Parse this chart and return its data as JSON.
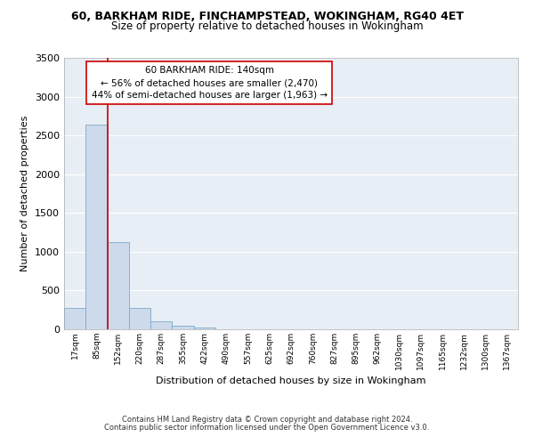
{
  "title_line1": "60, BARKHAM RIDE, FINCHAMPSTEAD, WOKINGHAM, RG40 4ET",
  "title_line2": "Size of property relative to detached houses in Wokingham",
  "xlabel": "Distribution of detached houses by size in Wokingham",
  "ylabel": "Number of detached properties",
  "footer_line1": "Contains HM Land Registry data © Crown copyright and database right 2024.",
  "footer_line2": "Contains public sector information licensed under the Open Government Licence v3.0.",
  "bar_labels": [
    "17sqm",
    "85sqm",
    "152sqm",
    "220sqm",
    "287sqm",
    "355sqm",
    "422sqm",
    "490sqm",
    "557sqm",
    "625sqm",
    "692sqm",
    "760sqm",
    "827sqm",
    "895sqm",
    "962sqm",
    "1030sqm",
    "1097sqm",
    "1165sqm",
    "1232sqm",
    "1300sqm",
    "1367sqm"
  ],
  "bar_values": [
    270,
    2640,
    1130,
    280,
    100,
    50,
    25,
    0,
    0,
    0,
    0,
    0,
    0,
    0,
    0,
    0,
    0,
    0,
    0,
    0,
    0
  ],
  "bar_color": "#ccdaeb",
  "bar_edge_color": "#7aaace",
  "ylim": [
    0,
    3500
  ],
  "yticks": [
    0,
    500,
    1000,
    1500,
    2000,
    2500,
    3000,
    3500
  ],
  "property_label": "60 BARKHAM RIDE: 140sqm",
  "annotation_line1": "← 56% of detached houses are smaller (2,470)",
  "annotation_line2": "44% of semi-detached houses are larger (1,963) →",
  "vline_color": "#cc0000",
  "annotation_box_color": "#ffffff",
  "annotation_box_edge": "#cc0000",
  "background_color": "#ffffff",
  "plot_bg_color": "#e8eef5",
  "grid_color": "#ffffff",
  "vline_x_bin": 1.5
}
